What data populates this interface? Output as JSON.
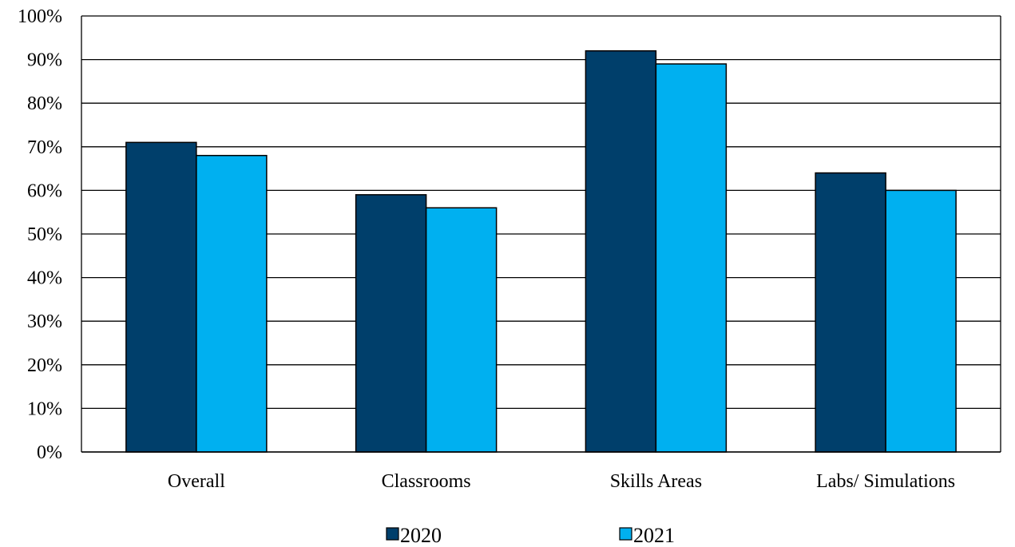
{
  "chart_data": {
    "type": "bar",
    "categories": [
      "Overall",
      "Classrooms",
      "Skills Areas",
      "Labs/ Simulations"
    ],
    "series": [
      {
        "name": "2020",
        "values": [
          71,
          59,
          92,
          64
        ],
        "color": "#003F6B"
      },
      {
        "name": "2021",
        "values": [
          68,
          56,
          89,
          60
        ],
        "color": "#00B0F0"
      }
    ],
    "ylim": [
      0,
      100
    ],
    "yticks": [
      0,
      10,
      20,
      30,
      40,
      50,
      60,
      70,
      80,
      90,
      100
    ],
    "ytick_labels": [
      "0%",
      "10%",
      "20%",
      "30%",
      "40%",
      "50%",
      "60%",
      "70%",
      "80%",
      "90%",
      "100%"
    ],
    "grid": true,
    "legend_position": "bottom"
  }
}
